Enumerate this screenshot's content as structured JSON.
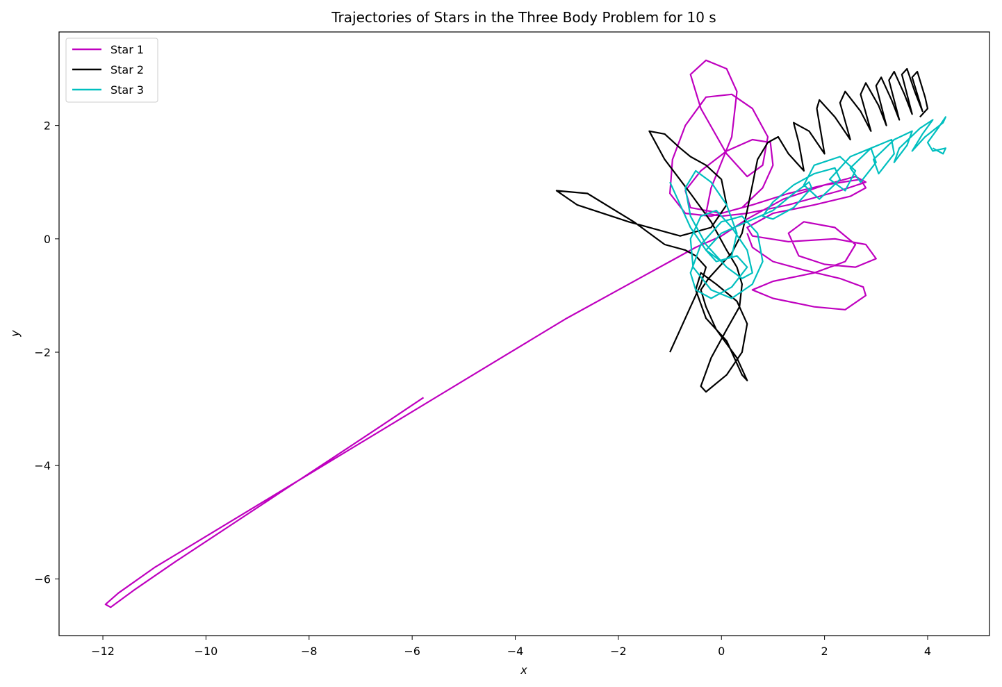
{
  "chart_data": {
    "type": "line",
    "title": "Trajectories of Stars in the Three Body Problem for 10 s",
    "xlabel": "x",
    "ylabel": "y",
    "xlim": [
      -12.85,
      5.2
    ],
    "ylim": [
      -7.0,
      3.65
    ],
    "xticks": [
      -12,
      -10,
      -8,
      -6,
      -4,
      -2,
      0,
      2,
      4
    ],
    "xtick_labels": [
      "−12",
      "−10",
      "−8",
      "−6",
      "−4",
      "−2",
      "0",
      "2",
      "4"
    ],
    "yticks": [
      -6,
      -4,
      -2,
      0,
      2
    ],
    "ytick_labels": [
      "−6",
      "−4",
      "−2",
      "0",
      "2"
    ],
    "grid": false,
    "legend_position": "top-left",
    "series": [
      {
        "name": "Star 1",
        "color": "#bf00bf",
        "x": [
          -5.78,
          -6.6,
          -7.6,
          -8.6,
          -9.6,
          -10.6,
          -11.4,
          -11.85,
          -11.95,
          -11.7,
          -11.0,
          -10.0,
          -9.0,
          -8.0,
          -7.0,
          -6.0,
          -5.0,
          -4.0,
          -3.0,
          -2.0,
          -1.0,
          -0.5,
          0.0,
          0.5,
          1.2,
          2.0,
          2.6,
          2.8,
          2.3,
          1.3,
          0.5,
          0.0,
          -0.3,
          -0.2,
          0.2,
          0.3,
          0.1,
          -0.3,
          -0.6,
          -0.4,
          0.1,
          0.5,
          0.8,
          0.9,
          0.6,
          0.2,
          -0.3,
          -0.7,
          -0.95,
          -1.0,
          -0.7,
          -0.2,
          0.4,
          0.8,
          1.0,
          0.95,
          0.6,
          0.1,
          -0.4,
          -0.7,
          -0.6,
          0.0,
          0.6,
          1.3,
          2.0,
          2.7,
          2.8,
          2.5,
          1.8,
          1.0,
          0.5,
          0.6,
          1.3,
          2.2,
          2.8,
          3.0,
          2.6,
          2.0,
          1.5,
          1.3,
          1.6,
          2.2,
          2.6,
          2.4,
          1.8,
          1.0,
          0.6,
          1.0,
          1.8,
          2.4,
          2.8,
          2.75,
          2.3,
          1.6,
          1.0,
          0.6,
          0.5
        ],
        "y": [
          -2.8,
          -3.3,
          -3.9,
          -4.5,
          -5.1,
          -5.7,
          -6.2,
          -6.5,
          -6.45,
          -6.25,
          -5.8,
          -5.25,
          -4.7,
          -4.15,
          -3.6,
          -3.05,
          -2.5,
          -1.95,
          -1.4,
          -0.9,
          -0.4,
          -0.15,
          0.05,
          0.35,
          0.7,
          0.95,
          1.1,
          1.0,
          0.85,
          0.6,
          0.45,
          0.4,
          0.45,
          0.9,
          1.8,
          2.6,
          3.0,
          3.15,
          2.9,
          2.3,
          1.5,
          1.1,
          1.3,
          1.8,
          2.3,
          2.55,
          2.5,
          2.0,
          1.4,
          0.8,
          0.45,
          0.4,
          0.55,
          0.9,
          1.3,
          1.7,
          1.75,
          1.55,
          1.2,
          0.85,
          0.55,
          0.45,
          0.6,
          0.8,
          0.95,
          1.05,
          0.9,
          0.75,
          0.6,
          0.45,
          0.2,
          0.05,
          -0.05,
          0.0,
          -0.1,
          -0.35,
          -0.5,
          -0.45,
          -0.3,
          0.1,
          0.3,
          0.2,
          -0.1,
          -0.4,
          -0.6,
          -0.75,
          -0.9,
          -1.05,
          -1.2,
          -1.25,
          -1.0,
          -0.85,
          -0.7,
          -0.55,
          -0.4,
          -0.15,
          0.1
        ]
      },
      {
        "name": "Star 2",
        "color": "#000000",
        "x": [
          -1.0,
          -0.8,
          -0.6,
          -0.4,
          -0.3,
          -0.5,
          -0.7,
          -1.1,
          -1.7,
          -2.6,
          -3.2,
          -2.8,
          -1.8,
          -0.8,
          -0.2,
          0.1,
          0.0,
          -0.3,
          -0.6,
          -0.8,
          -1.1,
          -1.4,
          -1.1,
          -0.6,
          -0.2,
          0.1,
          0.3,
          0.4,
          0.35,
          0.1,
          -0.2,
          -0.4,
          -0.3,
          0.1,
          0.4,
          0.5,
          0.3,
          -0.1,
          -0.4,
          -0.5,
          -0.3,
          0.1,
          0.4,
          0.5,
          0.3,
          -0.1,
          -0.3,
          -0.4,
          -0.25,
          -0.05,
          0.2,
          0.4,
          0.5,
          0.6,
          0.7,
          0.9,
          1.1,
          1.3,
          1.6,
          1.5,
          1.4,
          1.7,
          2.0,
          1.85,
          1.9,
          2.2,
          2.5,
          2.3,
          2.4,
          2.7,
          2.9,
          2.7,
          2.8,
          3.05,
          3.2,
          3.0,
          3.1,
          3.3,
          3.45,
          3.25,
          3.35,
          3.55,
          3.7,
          3.5,
          3.6,
          3.75,
          3.9,
          3.7,
          3.8,
          3.95,
          4.0,
          3.85
        ],
        "y": [
          -2.0,
          -1.6,
          -1.2,
          -0.8,
          -0.5,
          -0.3,
          -0.2,
          -0.1,
          0.3,
          0.8,
          0.85,
          0.6,
          0.3,
          0.05,
          0.2,
          0.6,
          1.05,
          1.3,
          1.45,
          1.6,
          1.85,
          1.9,
          1.4,
          0.8,
          0.3,
          -0.2,
          -0.5,
          -0.8,
          -1.2,
          -1.6,
          -2.1,
          -2.6,
          -2.7,
          -2.4,
          -2.0,
          -1.5,
          -1.1,
          -0.8,
          -0.6,
          -0.9,
          -1.4,
          -1.8,
          -2.4,
          -2.5,
          -2.1,
          -1.6,
          -1.2,
          -0.9,
          -0.7,
          -0.5,
          -0.25,
          0.1,
          0.5,
          0.95,
          1.4,
          1.7,
          1.8,
          1.5,
          1.2,
          1.7,
          2.05,
          1.9,
          1.5,
          2.3,
          2.45,
          2.15,
          1.75,
          2.4,
          2.6,
          2.25,
          1.9,
          2.55,
          2.75,
          2.35,
          2.0,
          2.7,
          2.85,
          2.45,
          2.1,
          2.8,
          2.95,
          2.55,
          2.2,
          2.9,
          3.0,
          2.6,
          2.25,
          2.85,
          2.95,
          2.5,
          2.3,
          2.15
        ]
      },
      {
        "name": "Star 3",
        "color": "#00bfbf",
        "x": [
          -1.0,
          -0.8,
          -0.6,
          -0.3,
          0.0,
          0.2,
          0.3,
          0.1,
          -0.2,
          -0.5,
          -0.7,
          -0.6,
          -0.3,
          0.1,
          0.4,
          0.6,
          0.5,
          0.2,
          -0.1,
          -0.4,
          -0.6,
          -0.55,
          -0.2,
          0.2,
          0.6,
          0.8,
          0.7,
          0.4,
          0.0,
          -0.4,
          -0.6,
          -0.5,
          -0.2,
          0.2,
          0.5,
          0.3,
          -0.1,
          -0.3,
          0.0,
          0.5,
          1.0,
          1.4,
          1.7,
          1.75,
          1.4,
          1.0,
          0.8,
          1.0,
          1.4,
          1.8,
          2.2,
          2.3,
          1.9,
          1.6,
          1.8,
          2.3,
          2.6,
          2.4,
          2.1,
          2.5,
          2.9,
          3.0,
          2.7,
          2.5,
          2.9,
          3.3,
          3.35,
          3.05,
          2.95,
          3.35,
          3.7,
          3.6,
          3.35,
          3.45,
          3.85,
          4.1,
          3.9,
          3.7,
          3.95,
          4.3,
          4.35,
          4.2,
          4.0,
          4.1,
          4.35,
          4.3,
          4.1
        ],
        "y": [
          1.0,
          0.6,
          0.2,
          -0.2,
          -0.4,
          -0.3,
          0.1,
          0.6,
          1.0,
          1.2,
          0.9,
          0.4,
          -0.1,
          -0.5,
          -0.7,
          -0.6,
          -0.2,
          0.2,
          0.5,
          0.4,
          0.0,
          -0.5,
          -0.9,
          -1.05,
          -0.8,
          -0.4,
          0.1,
          0.4,
          0.3,
          -0.1,
          -0.6,
          -0.9,
          -1.05,
          -0.85,
          -0.5,
          -0.3,
          -0.4,
          -0.2,
          0.1,
          0.3,
          0.5,
          0.8,
          1.0,
          0.9,
          0.55,
          0.35,
          0.4,
          0.65,
          0.95,
          1.15,
          1.25,
          1.05,
          0.7,
          0.95,
          1.3,
          1.45,
          1.2,
          0.85,
          1.05,
          1.45,
          1.6,
          1.35,
          1.0,
          1.25,
          1.6,
          1.75,
          1.5,
          1.15,
          1.4,
          1.75,
          1.9,
          1.65,
          1.35,
          1.6,
          1.95,
          2.1,
          1.85,
          1.55,
          1.8,
          2.05,
          2.15,
          1.95,
          1.7,
          1.55,
          1.6,
          1.5,
          1.6
        ]
      }
    ]
  }
}
